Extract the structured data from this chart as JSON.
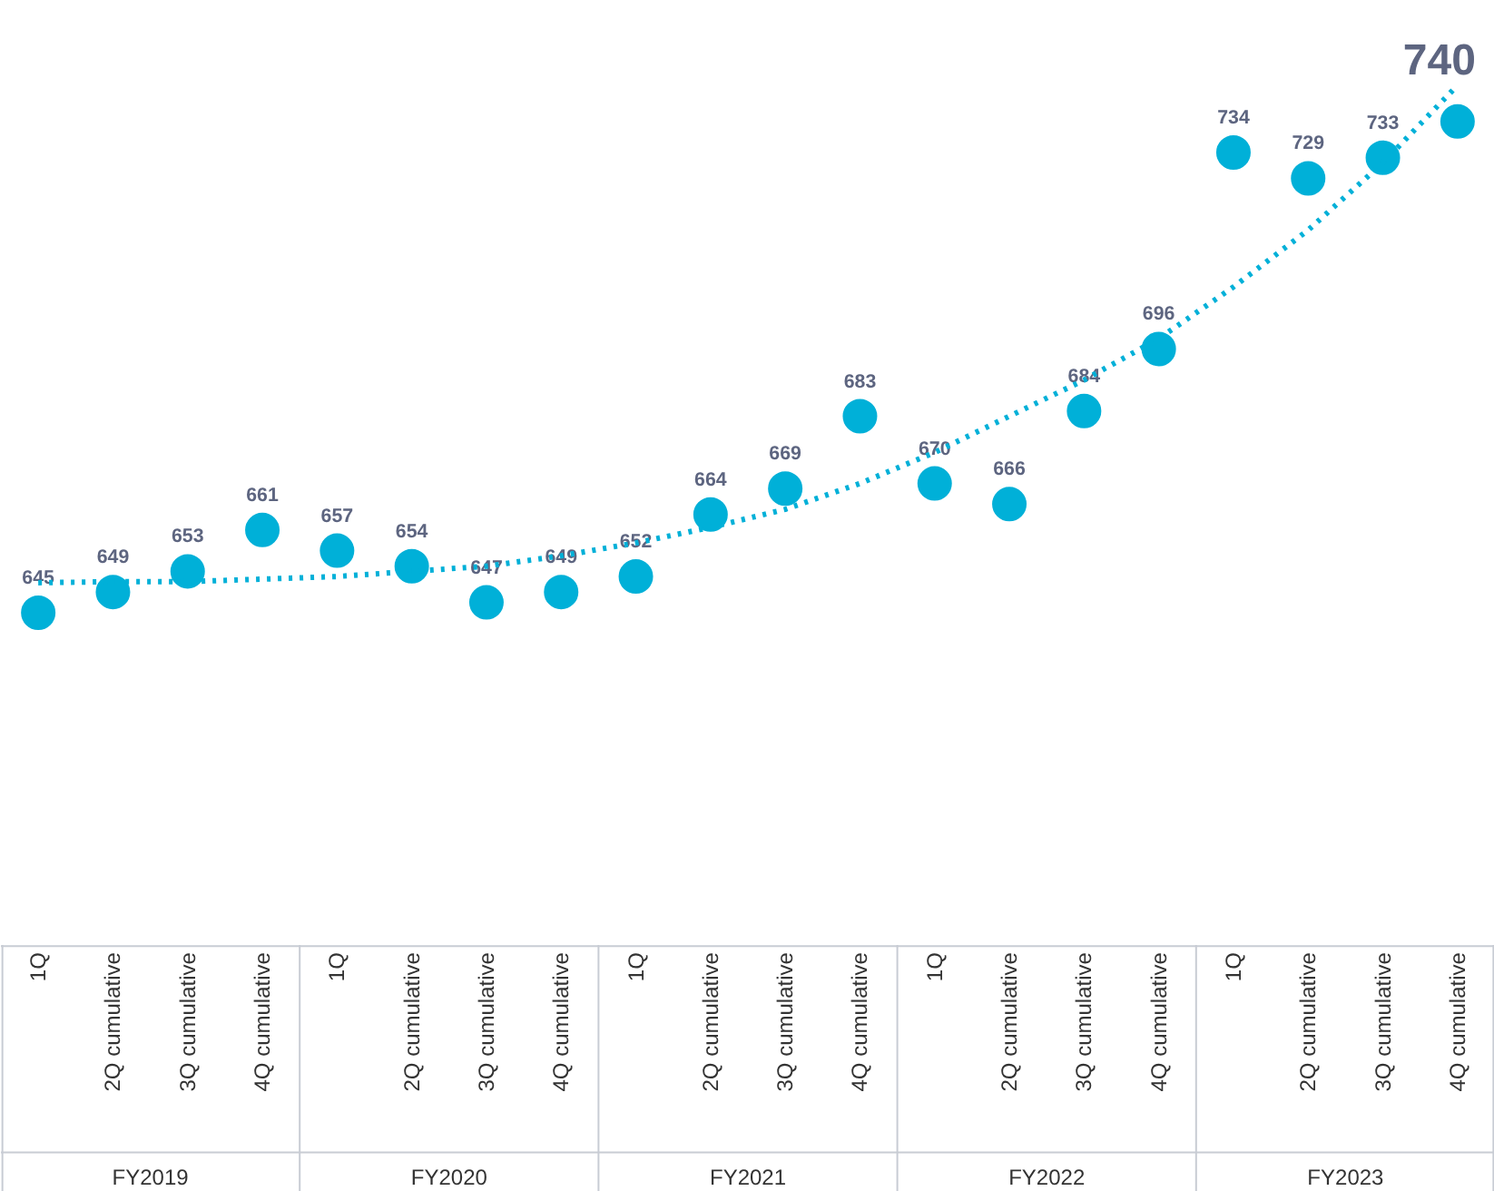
{
  "chart_data": {
    "type": "scatter",
    "categories": [
      "1Q",
      "2Q cumulative",
      "3Q cumulative",
      "4Q cumulative",
      "1Q",
      "2Q cumulative",
      "3Q cumulative",
      "4Q cumulative",
      "1Q",
      "2Q cumulative",
      "3Q cumulative",
      "4Q cumulative",
      "1Q",
      "2Q cumulative",
      "3Q cumulative",
      "4Q cumulative",
      "1Q",
      "2Q cumulative",
      "3Q cumulative",
      "4Q cumulative"
    ],
    "series": [
      {
        "color": "#00b0d8",
        "values": [
          645,
          649,
          653,
          661,
          657,
          654,
          647,
          649,
          652,
          664,
          669,
          683,
          670,
          666,
          684,
          696,
          734,
          729,
          733,
          740
        ],
        "value_labels": [
          "645",
          "649",
          "653",
          "661",
          "657",
          "654",
          "647",
          "649",
          "652",
          "664",
          "669",
          "683",
          "670",
          "666",
          "684",
          "696",
          "734",
          "729",
          "733",
          "740"
        ]
      },
      {
        "type": "line",
        "color": "#00b0d8",
        "line_style": "dotted",
        "marker": "none",
        "values": [
          650.8,
          651,
          651,
          651.5,
          652,
          653,
          654,
          656,
          658.5,
          661.5,
          665,
          670,
          676,
          683,
          690,
          698,
          708,
          719,
          732,
          747
        ]
      }
    ],
    "marker": "circle",
    "grid": false,
    "annotations": [
      "FY2019",
      "FY2020",
      "FY2021",
      "FY2022",
      "FY2023"
    ]
  }
}
